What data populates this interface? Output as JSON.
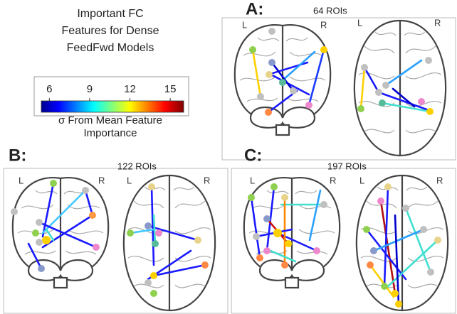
{
  "title": [
    "Important FC",
    "Features for Dense",
    "FeedFwd Models"
  ],
  "colorbar": {
    "ticks": [
      6,
      9,
      12,
      15
    ],
    "lim": [
      5.4,
      16
    ],
    "label": [
      "σ From Mean Feature",
      "Importance"
    ]
  },
  "panels": [
    {
      "label": "A:",
      "rois": "64 ROIs",
      "brains": [
        [
          "L",
          "R"
        ],
        [
          "L",
          "R"
        ]
      ]
    },
    {
      "label": "B:",
      "rois": "122 ROIs",
      "brains": [
        [
          "L",
          "R"
        ],
        [
          "L",
          "R"
        ]
      ]
    },
    {
      "label": "C:",
      "rois": "197 ROIs",
      "brains": [
        [
          "L",
          "R"
        ],
        [
          "L",
          "R"
        ]
      ]
    }
  ]
}
